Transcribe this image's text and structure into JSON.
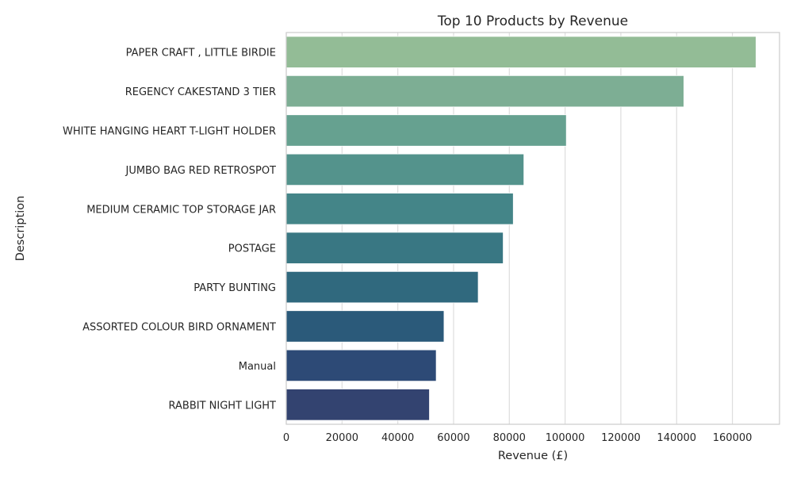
{
  "chart_data": {
    "type": "bar",
    "orientation": "horizontal",
    "title": "Top 10 Products by Revenue",
    "xlabel": "Revenue (£)",
    "ylabel": "Description",
    "categories": [
      "PAPER CRAFT , LITTLE BIRDIE",
      "REGENCY CAKESTAND 3 TIER",
      "WHITE HANGING HEART T-LIGHT HOLDER",
      "JUMBO BAG RED RETROSPOT",
      "MEDIUM CERAMIC TOP STORAGE JAR",
      "POSTAGE",
      "PARTY BUNTING",
      "ASSORTED COLOUR BIRD ORNAMENT",
      "Manual",
      "RABBIT NIGHT LIGHT"
    ],
    "values": [
      168470,
      142593,
      100448,
      85221,
      81417,
      77804,
      68844,
      56580,
      53780,
      51346
    ],
    "xlim": [
      0,
      176900
    ],
    "xticks": [
      0,
      20000,
      40000,
      60000,
      80000,
      100000,
      120000,
      140000,
      160000
    ],
    "colors": [
      "#93bc96",
      "#7dae94",
      "#66a190",
      "#54938c",
      "#448588",
      "#397783",
      "#30697e",
      "#2b5a7a",
      "#2d4a76",
      "#334370"
    ],
    "grid": "x",
    "legend": "none"
  }
}
